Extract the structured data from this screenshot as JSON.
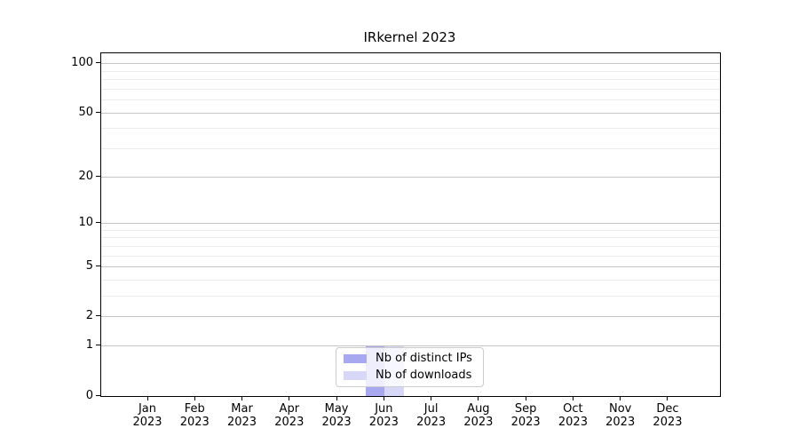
{
  "chart_data": {
    "type": "bar",
    "title": "IRkernel 2023",
    "categories": [
      {
        "month": "Jan",
        "year": "2023"
      },
      {
        "month": "Feb",
        "year": "2023"
      },
      {
        "month": "Mar",
        "year": "2023"
      },
      {
        "month": "Apr",
        "year": "2023"
      },
      {
        "month": "May",
        "year": "2023"
      },
      {
        "month": "Jun",
        "year": "2023"
      },
      {
        "month": "Jul",
        "year": "2023"
      },
      {
        "month": "Aug",
        "year": "2023"
      },
      {
        "month": "Sep",
        "year": "2023"
      },
      {
        "month": "Oct",
        "year": "2023"
      },
      {
        "month": "Nov",
        "year": "2023"
      },
      {
        "month": "Dec",
        "year": "2023"
      }
    ],
    "series": [
      {
        "name": "Nb of distinct IPs",
        "color": "#a8a8f0",
        "values": [
          0,
          0,
          0,
          0,
          0,
          1,
          0,
          0,
          0,
          0,
          0,
          0
        ]
      },
      {
        "name": "Nb of downloads",
        "color": "#d7d7f8",
        "values": [
          0,
          0,
          0,
          0,
          0,
          1,
          0,
          0,
          0,
          0,
          0,
          0
        ]
      }
    ],
    "yscale": "log10(1+x)",
    "ylim": [
      0,
      115
    ],
    "y_major_ticks": [
      0,
      1,
      2,
      5,
      10,
      20,
      50,
      100
    ],
    "y_minor_gridlines": [
      3,
      4,
      6,
      7,
      8,
      9,
      30,
      40,
      60,
      70,
      80,
      90
    ],
    "grid": "horizontal",
    "legend_position": "lower center",
    "grid_major_color": "#c6c6c6",
    "grid_minor_color": "#ececec"
  }
}
